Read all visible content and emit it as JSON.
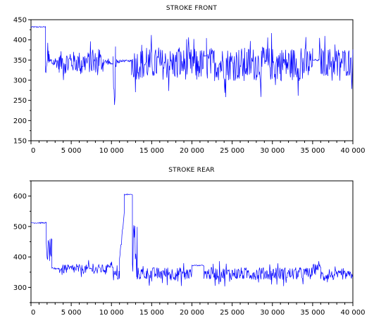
{
  "chart_data": [
    {
      "type": "line",
      "title": "STROKE FRONT",
      "xlabel": "",
      "ylabel": "",
      "xlim": [
        0,
        40000
      ],
      "ylim": [
        150,
        450
      ],
      "x_ticks": [
        0,
        5000,
        10000,
        15000,
        20000,
        25000,
        30000,
        35000,
        40000
      ],
      "x_tick_labels": [
        "0",
        "5 000",
        "10 000",
        "15 000",
        "20 000",
        "25 000",
        "30 000",
        "35 000",
        "40 000"
      ],
      "y_ticks": [
        150,
        200,
        250,
        300,
        350,
        400,
        450
      ],
      "y_tick_labels": [
        "150",
        "200",
        "250",
        "300",
        "350",
        "400",
        "450"
      ],
      "grid": false,
      "legend": "none",
      "line_color": "#0000ff",
      "segments": [
        {
          "x0": 0,
          "x1": 1800,
          "base": 432,
          "noise": 3,
          "kind": "flat"
        },
        {
          "x0": 1800,
          "x1": 2200,
          "base": 350,
          "noise": 45,
          "kind": "drop"
        },
        {
          "x0": 2200,
          "x1": 3500,
          "base": 345,
          "noise": 25,
          "kind": "noisy"
        },
        {
          "x0": 3500,
          "x1": 9000,
          "base": 345,
          "noise": 45,
          "kind": "noisy"
        },
        {
          "x0": 9000,
          "x1": 9800,
          "base": 345,
          "noise": 12,
          "kind": "noisy"
        },
        {
          "x0": 9800,
          "x1": 10200,
          "base": 340,
          "noise": 8,
          "kind": "flat"
        },
        {
          "x0": 10200,
          "x1": 10500,
          "base": 320,
          "noise": 90,
          "kind": "spike"
        },
        {
          "x0": 10500,
          "x1": 11000,
          "base": 340,
          "noise": 15,
          "kind": "noisy"
        },
        {
          "x0": 11000,
          "x1": 12500,
          "base": 348,
          "noise": 5,
          "kind": "flat"
        },
        {
          "x0": 12500,
          "x1": 21500,
          "base": 340,
          "noise": 65,
          "kind": "noisy"
        },
        {
          "x0": 21500,
          "x1": 21800,
          "base": 360,
          "noise": 2,
          "kind": "flat"
        },
        {
          "x0": 21800,
          "x1": 35000,
          "base": 340,
          "noise": 70,
          "kind": "noisy"
        },
        {
          "x0": 35000,
          "x1": 35800,
          "base": 350,
          "noise": 5,
          "kind": "flat"
        },
        {
          "x0": 35800,
          "x1": 40000,
          "base": 345,
          "noise": 60,
          "kind": "noisy"
        }
      ]
    },
    {
      "type": "line",
      "title": "STROKE REAR",
      "xlabel": "",
      "ylabel": "",
      "xlim": [
        0,
        40000
      ],
      "ylim": [
        250,
        650
      ],
      "x_ticks": [
        0,
        5000,
        10000,
        15000,
        20000,
        25000,
        30000,
        35000,
        40000
      ],
      "x_tick_labels": [
        "0",
        "5 000",
        "10 000",
        "15 000",
        "20 000",
        "25 000",
        "30 000",
        "35 000",
        "40 000"
      ],
      "y_ticks": [
        300,
        400,
        500,
        600
      ],
      "y_tick_labels": [
        "300",
        "400",
        "500",
        "600"
      ],
      "grid": false,
      "legend": "none",
      "line_color": "#0000ff",
      "segments": [
        {
          "x0": 0,
          "x1": 1900,
          "base": 512,
          "noise": 4,
          "kind": "flat"
        },
        {
          "x0": 1900,
          "x1": 2600,
          "base": 420,
          "noise": 40,
          "kind": "drop"
        },
        {
          "x0": 2600,
          "x1": 3500,
          "base": 362,
          "noise": 6,
          "kind": "flat"
        },
        {
          "x0": 3500,
          "x1": 9500,
          "base": 360,
          "noise": 25,
          "kind": "noisy"
        },
        {
          "x0": 9500,
          "x1": 10200,
          "base": 375,
          "noise": 20,
          "kind": "noisy"
        },
        {
          "x0": 10200,
          "x1": 11000,
          "base": 340,
          "noise": 30,
          "kind": "noisy"
        },
        {
          "x0": 11000,
          "x1": 11600,
          "base": 450,
          "noise": 60,
          "kind": "ramp"
        },
        {
          "x0": 11600,
          "x1": 12600,
          "base": 605,
          "noise": 4,
          "kind": "flat"
        },
        {
          "x0": 12600,
          "x1": 13200,
          "base": 420,
          "noise": 90,
          "kind": "drop"
        },
        {
          "x0": 13200,
          "x1": 20000,
          "base": 345,
          "noise": 35,
          "kind": "noisy"
        },
        {
          "x0": 20000,
          "x1": 21500,
          "base": 372,
          "noise": 3,
          "kind": "flat"
        },
        {
          "x0": 21500,
          "x1": 35000,
          "base": 345,
          "noise": 35,
          "kind": "noisy"
        },
        {
          "x0": 35000,
          "x1": 36000,
          "base": 365,
          "noise": 20,
          "kind": "noisy"
        },
        {
          "x0": 36000,
          "x1": 40000,
          "base": 340,
          "noise": 25,
          "kind": "noisy"
        }
      ]
    }
  ]
}
